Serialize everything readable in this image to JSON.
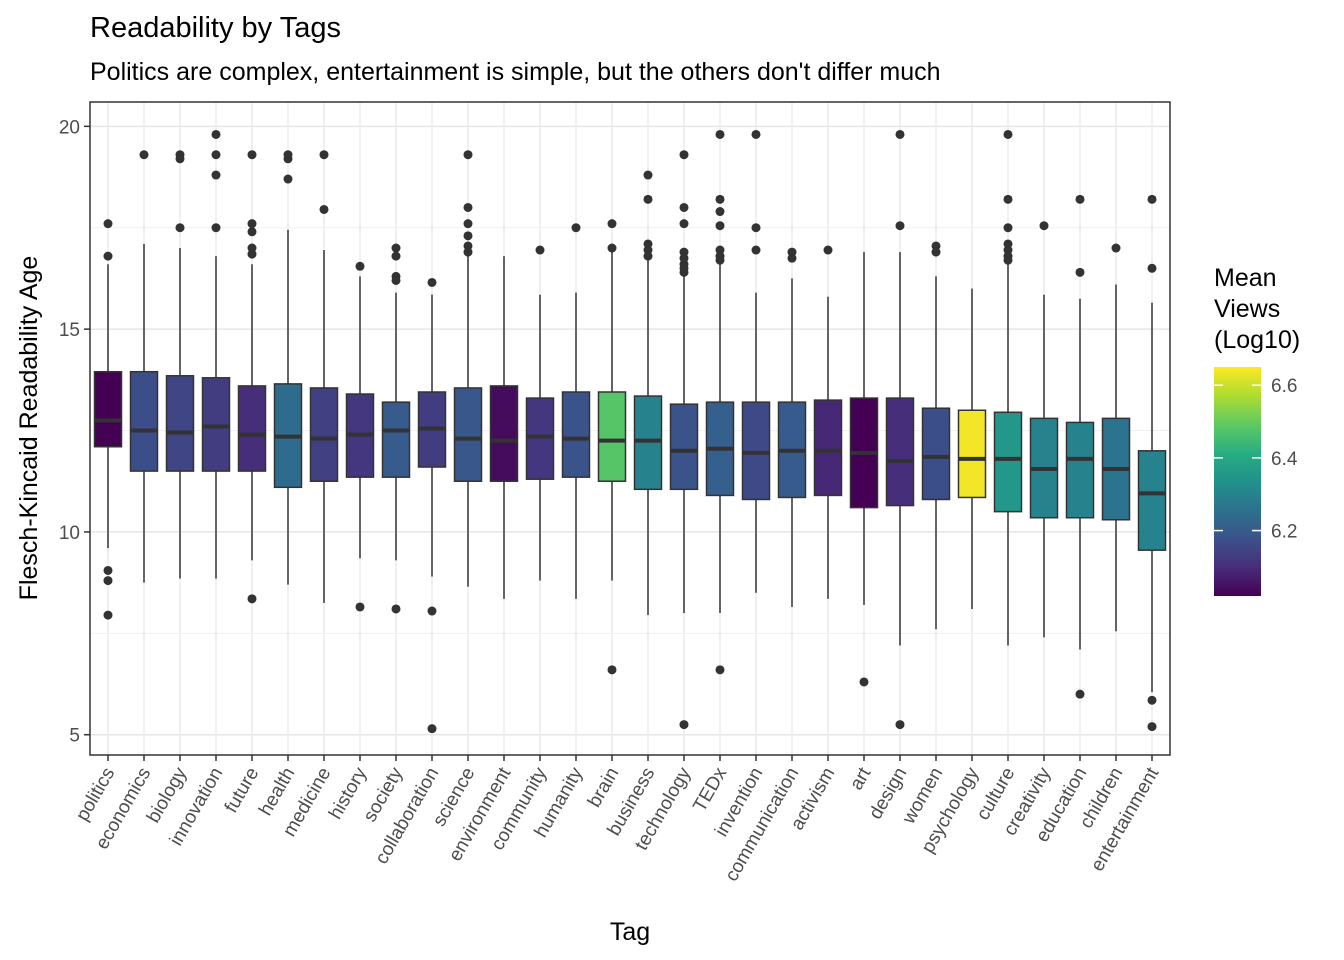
{
  "chart_data": {
    "type": "box",
    "title": "Readability by Tags",
    "subtitle": "Politics are complex, entertainment is simple, but the others don't differ much",
    "xlabel": "Tag",
    "ylabel": "Flesch-Kincaid Readability Age",
    "ylim": [
      4.5,
      20.6
    ],
    "yticks": [
      5,
      10,
      15,
      20
    ],
    "grid": true,
    "legend": {
      "title_lines": [
        "Mean",
        "Views",
        "(Log10)"
      ],
      "range": [
        6.02,
        6.65
      ],
      "ticks": [
        6.2,
        6.4,
        6.6
      ],
      "tick_labels": [
        "6.2",
        "6.4",
        "6.6"
      ],
      "position": "right"
    },
    "series": [
      {
        "category": "politics",
        "min": 9.6,
        "q1": 12.1,
        "median": 12.75,
        "q3": 13.95,
        "max": 16.6,
        "outliers": [
          16.8,
          17.6,
          9.05,
          8.8,
          7.95
        ],
        "mean_views": 6.02
      },
      {
        "category": "economics",
        "min": 8.75,
        "q1": 11.5,
        "median": 12.5,
        "q3": 13.95,
        "max": 17.1,
        "outliers": [
          19.3
        ],
        "mean_views": 6.17
      },
      {
        "category": "biology",
        "min": 8.85,
        "q1": 11.5,
        "median": 12.45,
        "q3": 13.85,
        "max": 17.0,
        "outliers": [
          19.3,
          19.2,
          17.5
        ],
        "mean_views": 6.15
      },
      {
        "category": "innovation",
        "min": 8.85,
        "q1": 11.5,
        "median": 12.6,
        "q3": 13.8,
        "max": 16.8,
        "outliers": [
          19.8,
          19.3,
          18.8,
          17.5
        ],
        "mean_views": 6.13
      },
      {
        "category": "future",
        "min": 9.3,
        "q1": 11.5,
        "median": 12.4,
        "q3": 13.6,
        "max": 16.6,
        "outliers": [
          19.3,
          17.6,
          17.4,
          17.0,
          16.85,
          8.35
        ],
        "mean_views": 6.1
      },
      {
        "category": "health",
        "min": 8.7,
        "q1": 11.1,
        "median": 12.35,
        "q3": 13.65,
        "max": 17.45,
        "outliers": [
          19.3,
          19.2,
          18.7
        ],
        "mean_views": 6.24
      },
      {
        "category": "medicine",
        "min": 8.25,
        "q1": 11.25,
        "median": 12.3,
        "q3": 13.55,
        "max": 16.95,
        "outliers": [
          19.3,
          17.95
        ],
        "mean_views": 6.14
      },
      {
        "category": "history",
        "min": 9.35,
        "q1": 11.35,
        "median": 12.4,
        "q3": 13.4,
        "max": 16.3,
        "outliers": [
          16.55,
          8.15
        ],
        "mean_views": 6.12
      },
      {
        "category": "society",
        "min": 9.3,
        "q1": 11.35,
        "median": 12.5,
        "q3": 13.2,
        "max": 15.9,
        "outliers": [
          17.0,
          16.8,
          16.3,
          16.2,
          8.1
        ],
        "mean_views": 6.2
      },
      {
        "category": "collaboration",
        "min": 8.9,
        "q1": 11.6,
        "median": 12.55,
        "q3": 13.45,
        "max": 15.85,
        "outliers": [
          16.15,
          8.05,
          5.15
        ],
        "mean_views": 6.13
      },
      {
        "category": "science",
        "min": 8.65,
        "q1": 11.25,
        "median": 12.3,
        "q3": 13.55,
        "max": 16.85,
        "outliers": [
          19.3,
          18.0,
          17.6,
          17.3,
          17.05,
          16.9
        ],
        "mean_views": 6.19
      },
      {
        "category": "environment",
        "min": 8.35,
        "q1": 11.25,
        "median": 12.25,
        "q3": 13.6,
        "max": 16.8,
        "outliers": [],
        "mean_views": 6.04
      },
      {
        "category": "community",
        "min": 8.8,
        "q1": 11.3,
        "median": 12.35,
        "q3": 13.3,
        "max": 15.85,
        "outliers": [
          16.95
        ],
        "mean_views": 6.12
      },
      {
        "category": "humanity",
        "min": 8.35,
        "q1": 11.35,
        "median": 12.3,
        "q3": 13.45,
        "max": 15.9,
        "outliers": [
          17.5
        ],
        "mean_views": 6.18
      },
      {
        "category": "brain",
        "min": 8.8,
        "q1": 11.25,
        "median": 12.25,
        "q3": 13.45,
        "max": 16.9,
        "outliers": [
          17.6,
          17.0,
          6.6
        ],
        "mean_views": 6.48
      },
      {
        "category": "business",
        "min": 7.95,
        "q1": 11.05,
        "median": 12.25,
        "q3": 13.35,
        "max": 16.7,
        "outliers": [
          18.8,
          18.2,
          17.1,
          16.95,
          16.8
        ],
        "mean_views": 6.3
      },
      {
        "category": "technology",
        "min": 8.0,
        "q1": 11.05,
        "median": 12.0,
        "q3": 13.15,
        "max": 16.3,
        "outliers": [
          19.3,
          18.0,
          17.6,
          16.9,
          16.75,
          16.6,
          16.5,
          16.4,
          5.25
        ],
        "mean_views": 6.18
      },
      {
        "category": "TEDx",
        "min": 8.0,
        "q1": 10.9,
        "median": 12.05,
        "q3": 13.2,
        "max": 16.6,
        "outliers": [
          19.8,
          18.2,
          17.9,
          17.55,
          16.95,
          16.8,
          16.7,
          6.6
        ],
        "mean_views": 6.21
      },
      {
        "category": "invention",
        "min": 8.5,
        "q1": 10.8,
        "median": 11.95,
        "q3": 13.2,
        "max": 15.9,
        "outliers": [
          19.8,
          17.5,
          16.95
        ],
        "mean_views": 6.16
      },
      {
        "category": "communication",
        "min": 8.15,
        "q1": 10.85,
        "median": 12.0,
        "q3": 13.2,
        "max": 16.25,
        "outliers": [
          16.9,
          16.75
        ],
        "mean_views": 6.2
      },
      {
        "category": "activism",
        "min": 8.35,
        "q1": 10.9,
        "median": 12.0,
        "q3": 13.25,
        "max": 15.8,
        "outliers": [
          16.95
        ],
        "mean_views": 6.09
      },
      {
        "category": "art",
        "min": 8.2,
        "q1": 10.6,
        "median": 11.95,
        "q3": 13.3,
        "max": 16.9,
        "outliers": [
          6.3
        ],
        "mean_views": 6.02
      },
      {
        "category": "design",
        "min": 7.2,
        "q1": 10.65,
        "median": 11.75,
        "q3": 13.3,
        "max": 16.9,
        "outliers": [
          19.8,
          17.55,
          5.25
        ],
        "mean_views": 6.1
      },
      {
        "category": "women",
        "min": 7.6,
        "q1": 10.8,
        "median": 11.85,
        "q3": 13.05,
        "max": 16.3,
        "outliers": [
          17.05,
          16.9
        ],
        "mean_views": 6.17
      },
      {
        "category": "psychology",
        "min": 8.1,
        "q1": 10.85,
        "median": 11.8,
        "q3": 13.0,
        "max": 16.0,
        "outliers": [],
        "mean_views": 6.64
      },
      {
        "category": "culture",
        "min": 7.2,
        "q1": 10.5,
        "median": 11.8,
        "q3": 12.95,
        "max": 16.6,
        "outliers": [
          19.8,
          18.2,
          17.5,
          17.1,
          16.95,
          16.8,
          16.7
        ],
        "mean_views": 6.35
      },
      {
        "category": "creativity",
        "min": 7.4,
        "q1": 10.35,
        "median": 11.55,
        "q3": 12.8,
        "max": 15.85,
        "outliers": [
          17.55
        ],
        "mean_views": 6.3
      },
      {
        "category": "education",
        "min": 7.1,
        "q1": 10.35,
        "median": 11.8,
        "q3": 12.7,
        "max": 15.75,
        "outliers": [
          18.2,
          16.4,
          6.0
        ],
        "mean_views": 6.3
      },
      {
        "category": "children",
        "min": 7.55,
        "q1": 10.3,
        "median": 11.55,
        "q3": 12.8,
        "max": 16.1,
        "outliers": [
          17.0
        ],
        "mean_views": 6.26
      },
      {
        "category": "entertainment",
        "min": 6.05,
        "q1": 9.55,
        "median": 10.95,
        "q3": 12.0,
        "max": 15.65,
        "outliers": [
          18.2,
          16.5,
          5.85,
          5.2
        ],
        "mean_views": 6.3
      }
    ]
  }
}
